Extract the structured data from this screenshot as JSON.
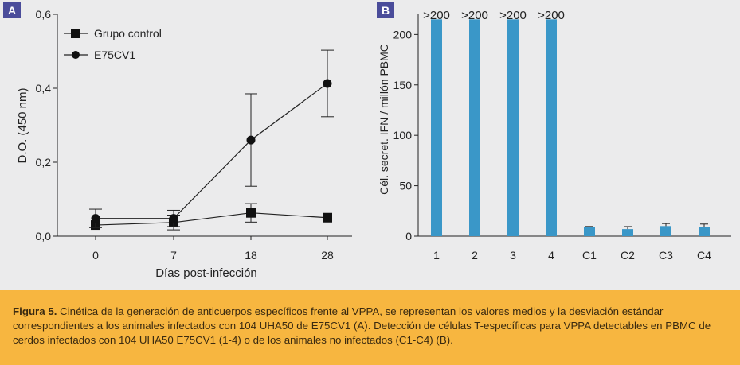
{
  "caption": {
    "label": "Figura 5.",
    "text": " Cinética de la generación de anticuerpos específicos frente al VPPA, se representan los valores medios y la desviación estándar correspondientes a los animales infectados con 104 UHA50 de E75CV1 (A). Detección de células T-específicas para VPPA detectables en PBMC de cerdos infectados con 104 UHA50 E75CV1 (1-4) o de los animales no infectados (C1-C4) (B)."
  },
  "colors": {
    "badge": "#4a4c9a",
    "bar": "#3a97c8",
    "panel_bg": "#ebebec",
    "caption_bg": "#f7b640"
  },
  "chart_data": [
    {
      "type": "line",
      "panel_label": "A",
      "xlabel": "Días post-infección",
      "ylabel": "D.O. (450 nm)",
      "categories": [
        "0",
        "7",
        "18",
        "28"
      ],
      "ylim": [
        0,
        0.6
      ],
      "yticks": [
        "0,0",
        "0,2",
        "0,4",
        "0,6"
      ],
      "legend_position": "top-left",
      "series": [
        {
          "name": "Grupo control",
          "marker": "square",
          "values": [
            0.03,
            0.037,
            0.063,
            0.05
          ],
          "err": [
            0.0,
            0.02,
            0.025,
            0.0
          ]
        },
        {
          "name": "E75CV1",
          "marker": "circle",
          "values": [
            0.048,
            0.048,
            0.26,
            0.413
          ],
          "err": [
            0.025,
            0.022,
            0.125,
            0.09
          ]
        }
      ]
    },
    {
      "type": "bar",
      "panel_label": "B",
      "ylabel": "Cél. secret. IFN  / millón PBMC",
      "categories": [
        "1",
        "2",
        "3",
        "4",
        "C1",
        "C2",
        "C3",
        "C4"
      ],
      "values": [
        215,
        215,
        215,
        215,
        9,
        7,
        10,
        9
      ],
      "err": [
        0,
        0,
        0,
        0,
        0.6,
        2.5,
        2.5,
        3
      ],
      "bar_labels": [
        ">200",
        ">200",
        ">200",
        ">200",
        "",
        "",
        "",
        ""
      ],
      "ylim": [
        0,
        220
      ],
      "yticks": [
        "0",
        "50",
        "100",
        "150",
        "200"
      ]
    }
  ]
}
